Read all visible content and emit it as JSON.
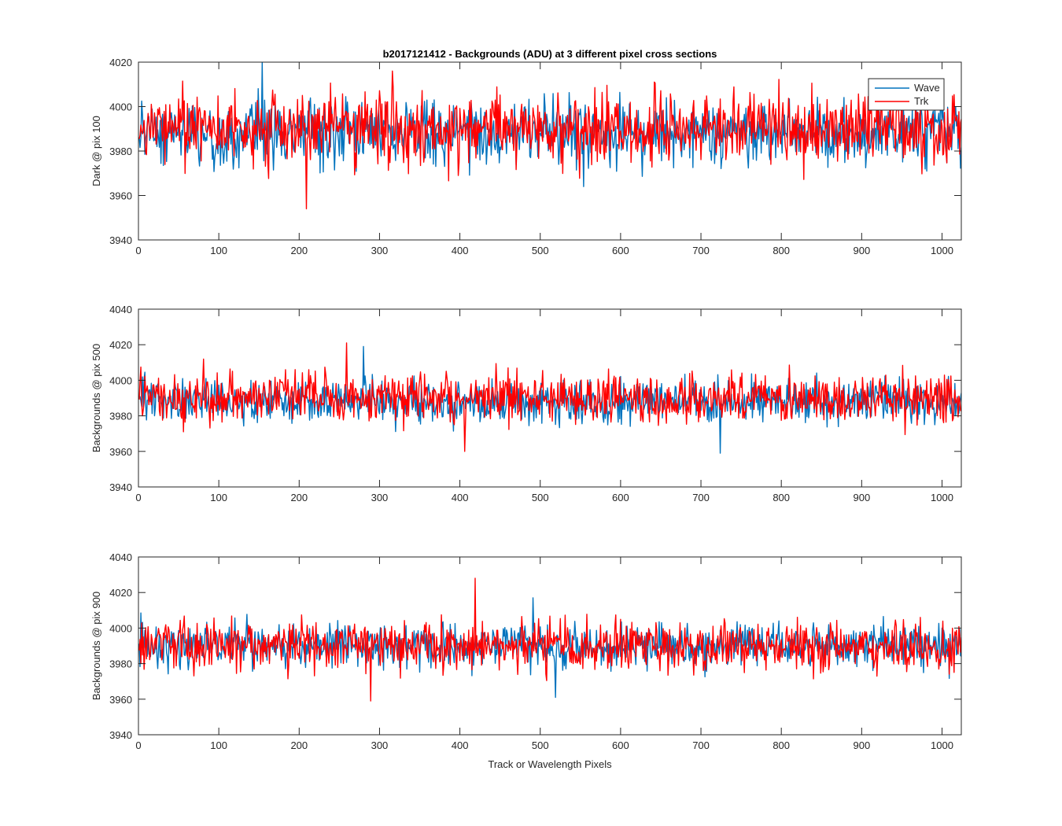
{
  "figure": {
    "title": "b2017121412 - Backgrounds (ADU) at 3 different pixel cross sections",
    "xlabel": "Track or Wavelength Pixels"
  },
  "colors": {
    "wave": "#0072BD",
    "trk": "#FF0000",
    "axis": "#262626"
  },
  "chart_data": [
    {
      "type": "line",
      "ylabel": "Dark @ pix 100",
      "xlim": [
        0,
        1024
      ],
      "ylim": [
        3940,
        4020
      ],
      "xticks": [
        0,
        100,
        200,
        300,
        400,
        500,
        600,
        700,
        800,
        900,
        1000
      ],
      "yticks": [
        3940,
        3960,
        3980,
        4000,
        4020
      ],
      "grid": false,
      "legend_position": "top-right",
      "series": [
        {
          "name": "Wave",
          "color": "#0072BD",
          "n_points": 1024,
          "mean": 3988,
          "std": 7,
          "min": 3964,
          "max": 4020
        },
        {
          "name": "Trk",
          "color": "#FF0000",
          "n_points": 1024,
          "mean": 3990,
          "std": 8,
          "min": 3954,
          "max": 4016
        }
      ]
    },
    {
      "type": "line",
      "ylabel": "Backgrounds @ pix 500",
      "xlim": [
        0,
        1024
      ],
      "ylim": [
        3940,
        4040
      ],
      "xticks": [
        0,
        100,
        200,
        300,
        400,
        500,
        600,
        700,
        800,
        900,
        1000
      ],
      "yticks": [
        3940,
        3960,
        3980,
        4000,
        4020,
        4040
      ],
      "grid": false,
      "series": [
        {
          "name": "Wave",
          "color": "#0072BD",
          "n_points": 1024,
          "mean": 3988,
          "std": 6,
          "min": 3959,
          "max": 4019
        },
        {
          "name": "Trk",
          "color": "#FF0000",
          "n_points": 1024,
          "mean": 3990,
          "std": 7,
          "min": 3960,
          "max": 4021
        }
      ]
    },
    {
      "type": "line",
      "ylabel": "Backgrounds @ pix 900",
      "xlim": [
        0,
        1024
      ],
      "ylim": [
        3940,
        4040
      ],
      "xticks": [
        0,
        100,
        200,
        300,
        400,
        500,
        600,
        700,
        800,
        900,
        1000
      ],
      "yticks": [
        3940,
        3960,
        3980,
        4000,
        4020,
        4040
      ],
      "grid": false,
      "series": [
        {
          "name": "Wave",
          "color": "#0072BD",
          "n_points": 1024,
          "mean": 3990,
          "std": 6,
          "min": 3961,
          "max": 4017
        },
        {
          "name": "Trk",
          "color": "#FF0000",
          "n_points": 1024,
          "mean": 3990,
          "std": 7,
          "min": 3959,
          "max": 4028
        }
      ]
    }
  ]
}
